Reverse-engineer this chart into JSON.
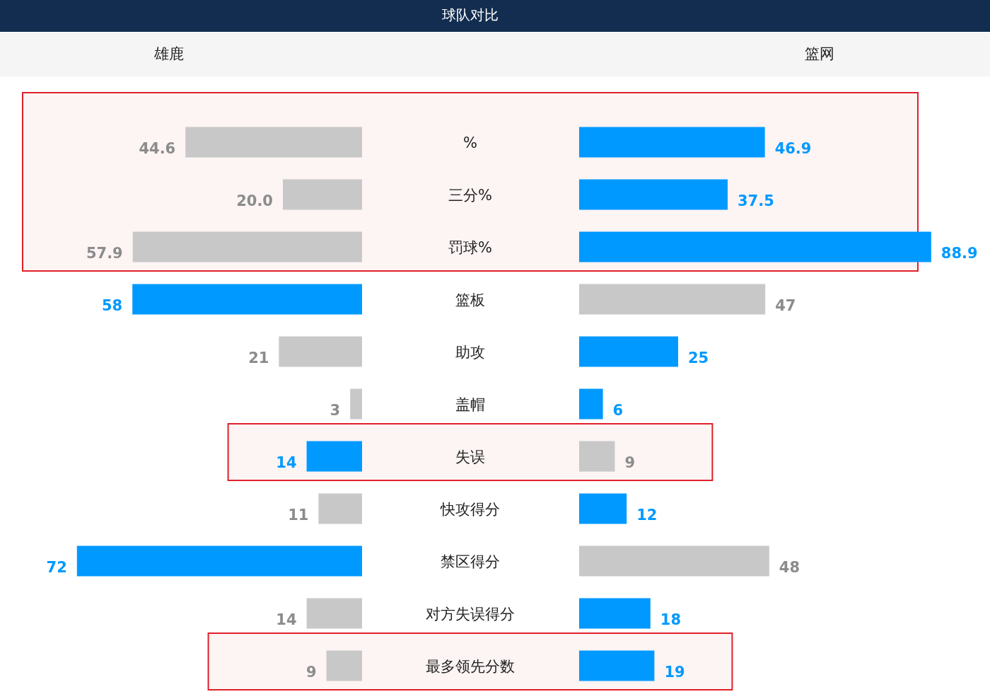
{
  "chart_data": [
    {
      "type": "bar",
      "orientation": "horizontal",
      "title": "球队对比",
      "categories": [
        "%",
        "三分%",
        "罚球%",
        "篮板",
        "助攻",
        "盖帽",
        "失误",
        "快攻得分",
        "禁区得分",
        "对方失误得分",
        "最多领先分数"
      ],
      "series": [
        {
          "name": "雄鹿",
          "values": [
            44.6,
            20.0,
            57.9,
            58,
            21,
            3,
            14,
            11,
            72,
            14,
            9
          ],
          "value_labels": [
            "44.6",
            "20.0",
            "57.9",
            "58",
            "21",
            "3",
            "14",
            "11",
            "72",
            "14",
            "9"
          ],
          "colors": [
            "#c8c8c8",
            "#c8c8c8",
            "#c8c8c8",
            "#0099ff",
            "#c8c8c8",
            "#c8c8c8",
            "#0099ff",
            "#c8c8c8",
            "#0099ff",
            "#c8c8c8",
            "#c8c8c8"
          ]
        }
      ],
      "bands": [
        {
          "axis": "y",
          "from": "%",
          "to": "罚球%",
          "color": "#e0202a"
        },
        {
          "axis": "y",
          "from": "失误",
          "to": "失误",
          "color": "#e0202a"
        },
        {
          "axis": "y",
          "from": "最多领先分数",
          "to": "最多领先分数",
          "color": "#e0202a"
        }
      ]
    },
    {
      "type": "bar",
      "orientation": "horizontal",
      "categories": [
        null,
        null,
        null,
        null,
        null,
        null,
        null,
        null,
        null,
        null,
        null
      ],
      "series": [
        {
          "name": "篮网",
          "values": [
            46.9,
            37.5,
            88.9,
            47,
            25,
            6,
            9,
            12,
            48,
            18,
            19
          ],
          "value_labels": [
            "46.9",
            "37.5",
            "88.9",
            "47",
            "25",
            "6",
            "9",
            "12",
            "48",
            "18",
            "19"
          ],
          "colors": [
            "#0099ff",
            "#0099ff",
            "#0099ff",
            "#c8c8c8",
            "#0099ff",
            "#0099ff",
            "#c8c8c8",
            "#0099ff",
            "#c8c8c8",
            "#0099ff",
            "#0099ff"
          ]
        }
      ]
    }
  ]
}
